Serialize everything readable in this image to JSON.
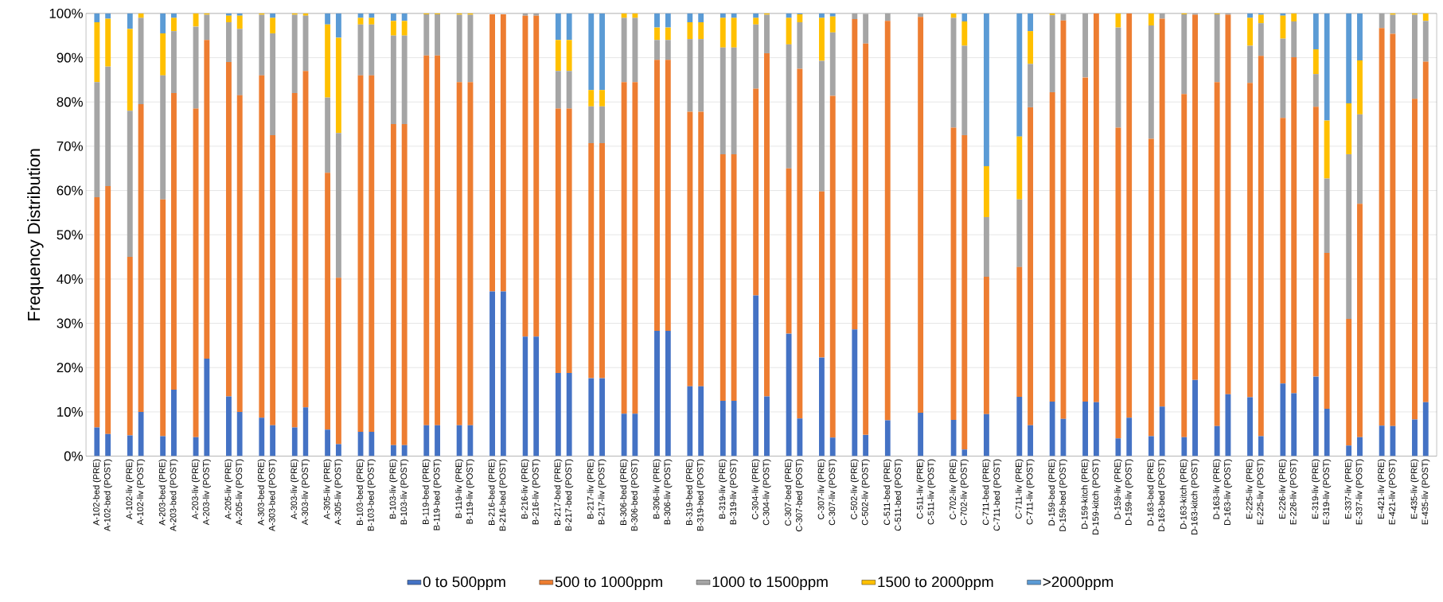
{
  "chart_data": {
    "type": "bar",
    "stacked": true,
    "ylabel": "Frequency Distribution",
    "grid": "y",
    "legend": "bottom",
    "categories": [
      "A-102-bed (PRE)",
      "A-102-bed (POST)",
      "A-102-liv (PRE)",
      "A-102-liv (POST)",
      "A-203-bed (PRE)",
      "A-203-bed (POST)",
      "A-203-liv (PRE)",
      "A-203-liv (POST)",
      "A-205-liv (PRE)",
      "A-205-liv (POST)",
      "A-303-bed (PRE)",
      "A-303-bed (POST)",
      "A-303-liv (PRE)",
      "A-303-liv (POST)",
      "A-305-liv (PRE)",
      "A-305-liv (POST)",
      "B-103-bed (PRE)",
      "B-103-bed (POST)",
      "B-103-liv (PRE)",
      "B-103-liv (POST)",
      "B-119-bed (PRE)",
      "B-119-bed (POST)",
      "B-119-liv (PRE)",
      "B-119-liv (POST)",
      "B-216-bed (PRE)",
      "B-216-bed (POST)",
      "B-216-liv (PRE)",
      "B-216-liv (POST)",
      "B-217-bed (PRE)",
      "B-217-bed (POST)",
      "B-217-liv (PRE)",
      "B-217-liv (POST)",
      "B-306-bed (PRE)",
      "B-306-bed (POST)",
      "B-306-liv (PRE)",
      "B-306-liv (POST)",
      "B-319-bed (PRE)",
      "B-319-bed (POST)",
      "B-319-liv (PRE)",
      "B-319-liv (POST)",
      "C-304-liv (PRE)",
      "C-304-liv (POST)",
      "C-307-bed (PRE)",
      "C-307-bed (POST)",
      "C-307-liv (PRE)",
      "C-307-liv (POST)",
      "C-502-liv (PRE)",
      "C-502-liv (POST)",
      "C-511-bed (PRE)",
      "C-511-bed (POST)",
      "C-511-liv (PRE)",
      "C-511-liv (POST)",
      "C-702-liv (PRE)",
      "C-702-liv (POST)",
      "C-711-bed (PRE)",
      "C-711-bed (POST)",
      "C-711-liv (PRE)",
      "C-711-liv (POST)",
      "D-159-bed (PRE)",
      "D-159-bed (POST)",
      "D-159-kitch (PRE)",
      "D-159-kitch (POST)",
      "D-159-liv (PRE)",
      "D-159-liv (POST)",
      "D-163-bed (PRE)",
      "D-163-bed (POST)",
      "D-163-kitch (PRE)",
      "D-163-kitch (POST)",
      "D-163-liv (PRE)",
      "D-163-liv (POST)",
      "E-225-liv (PRE)",
      "E-225-liv (POST)",
      "E-226-liv (PRE)",
      "E-226-liv (POST)",
      "E-319-liv (PRE)",
      "E-319-liv (POST)",
      "E-337-liv (PRE)",
      "E-337-liv (POST)",
      "E-421-liv (PRE)",
      "E-421-liv (POST)",
      "E-435-liv (PRE)",
      "E-435-liv (POST)"
    ],
    "ylim": [
      0,
      100
    ],
    "yticks": [
      {
        "value": 0,
        "label": "0%"
      },
      {
        "value": 10,
        "label": "10%"
      },
      {
        "value": 20,
        "label": "20%"
      },
      {
        "value": 30,
        "label": "30%"
      },
      {
        "value": 40,
        "label": "40%"
      },
      {
        "value": 50,
        "label": "50%"
      },
      {
        "value": 60,
        "label": "60%"
      },
      {
        "value": 70,
        "label": "70%"
      },
      {
        "value": 80,
        "label": "80%"
      },
      {
        "value": 90,
        "label": "90%"
      },
      {
        "value": 100,
        "label": "100%"
      }
    ],
    "series": [
      {
        "name": "0 to 500ppm",
        "color": "#4472c4",
        "values": [
          6.5,
          5,
          4.7,
          10,
          4.5,
          15,
          4.3,
          22,
          13.5,
          10,
          8.7,
          7,
          6.5,
          11,
          6,
          2.7,
          5.5,
          5.5,
          2.5,
          2.5,
          7,
          7,
          7,
          7,
          37.2,
          37.2,
          27,
          27,
          18.8,
          18.8,
          17.6,
          17.6,
          9.6,
          9.6,
          28.3,
          28.3,
          15.8,
          15.8,
          12.5,
          12.5,
          36.3,
          13.5,
          27.7,
          8.5,
          22.3,
          4.2,
          28.6,
          4.8,
          8.1,
          null,
          9.8,
          null,
          8.2,
          1.5,
          9.5,
          null,
          13.4,
          7,
          12.3,
          8.4,
          12.3,
          12.2,
          4,
          8.7,
          4.5,
          11.2,
          4.3,
          17.2,
          6.8,
          14,
          13.3,
          4.5,
          16.4,
          14.2,
          18,
          10.7,
          2.4,
          4.3,
          6.9,
          6.8,
          8.3,
          12.2
        ]
      },
      {
        "name": "500 to 1000ppm",
        "color": "#ed7d31",
        "values": [
          52,
          56,
          40.3,
          69.5,
          53.5,
          67,
          74.2,
          72,
          75.5,
          71.5,
          77.3,
          65.5,
          75.5,
          76,
          58,
          37.6,
          80.5,
          80.5,
          72.5,
          72.5,
          83.5,
          83.5,
          77.5,
          77.5,
          62.6,
          62.6,
          72.5,
          72.5,
          59.7,
          59.7,
          53.1,
          53.1,
          74.9,
          74.9,
          61.2,
          61.2,
          62,
          62,
          55.7,
          55.7,
          46.7,
          77.5,
          37.3,
          79,
          37.5,
          77.2,
          70.1,
          88.4,
          90.2,
          null,
          89.4,
          null,
          66,
          71,
          31,
          null,
          29.3,
          71.8,
          69.9,
          90,
          73.2,
          87.8,
          70.2,
          91.3,
          67.2,
          87.6,
          77.5,
          82.5,
          77.7,
          85.7,
          71,
          85.9,
          60,
          75.9,
          60.9,
          35.2,
          28.6,
          52.7,
          89.8,
          88.6,
          72.4,
          76.9
        ]
      },
      {
        "name": "1000 to 1500ppm",
        "color": "#a5a5a5",
        "values": [
          26,
          27,
          33,
          19.5,
          28,
          14,
          18.5,
          5.7,
          9,
          15,
          13.7,
          23,
          17.7,
          12.5,
          17,
          32.7,
          11.5,
          11.5,
          20,
          20,
          9.3,
          9.3,
          15.2,
          15.2,
          null,
          null,
          0.5,
          0.5,
          8.5,
          8.5,
          8.3,
          8.3,
          14.5,
          14.5,
          4.5,
          4.5,
          16.4,
          16.4,
          24.1,
          24.1,
          14.5,
          8.7,
          28,
          10.5,
          29.5,
          14.3,
          1.3,
          6.7,
          1.7,
          null,
          0.8,
          null,
          24.8,
          20.2,
          13.5,
          null,
          15.3,
          9.8,
          17.4,
          1.5,
          14.5,
          0,
          22.6,
          0,
          25.6,
          1.2,
          18,
          0.3,
          15.3,
          0.3,
          8.4,
          7.4,
          17.9,
          8.1,
          7.4,
          16.8,
          37.2,
          20.2,
          3.3,
          4.3,
          19,
          9.2
        ]
      },
      {
        "name": "1500 to 2000ppm",
        "color": "#ffc000",
        "values": [
          13.5,
          10.8,
          18.5,
          1,
          9.5,
          3,
          3,
          0.3,
          1.5,
          3,
          0.3,
          3.5,
          0.3,
          0.5,
          16.5,
          21.5,
          1.5,
          1.5,
          3.3,
          3.3,
          0.2,
          0.2,
          0.3,
          0.3,
          0,
          0,
          0,
          0,
          7,
          7,
          3.7,
          3.7,
          1,
          1,
          2.8,
          2.8,
          3.8,
          3.8,
          6.7,
          6.7,
          1.5,
          0.3,
          6,
          1.8,
          9.7,
          3.6,
          0,
          null,
          0,
          null,
          0,
          null,
          1,
          5.5,
          11.5,
          null,
          14.2,
          7.4,
          0.4,
          null,
          0,
          0,
          3.2,
          0,
          2.7,
          0,
          0.2,
          0,
          0.2,
          0,
          6.3,
          1.9,
          5.2,
          1.8,
          5.6,
          13.1,
          11.5,
          12.2,
          0,
          0.3,
          0.3,
          1.7
        ]
      },
      {
        "name": ">2000ppm",
        "color": "#5b9bd5",
        "values": [
          2,
          1.2,
          3.5,
          0,
          4.5,
          1,
          0,
          0,
          0.5,
          0.5,
          0,
          1,
          0,
          0,
          2.5,
          5.5,
          1,
          1,
          1.7,
          1.7,
          0,
          0,
          0,
          0,
          0,
          0,
          0,
          0,
          6,
          6,
          17.3,
          17.3,
          0,
          0,
          3.2,
          3.2,
          2,
          2,
          1,
          1,
          1,
          0,
          1,
          0.2,
          1,
          0.7,
          0,
          0,
          0,
          null,
          0,
          null,
          0,
          1.8,
          34.5,
          null,
          27.8,
          4,
          0,
          0,
          0,
          0,
          0,
          0,
          0,
          0,
          0,
          0,
          0,
          0,
          1,
          0.3,
          0.5,
          0,
          8.1,
          24.2,
          20.3,
          10.6,
          0,
          0,
          0,
          0
        ]
      }
    ]
  }
}
